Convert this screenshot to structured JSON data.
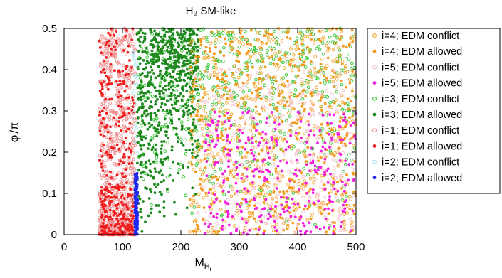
{
  "chart_data": {
    "type": "scatter",
    "title": "H₂ SM-like",
    "xlabel": "M",
    "xlabel_sub": "H",
    "xlabel_subsub": "i",
    "ylabel": "φ",
    "ylabel_sub": "i",
    "ylabel_suffix": "/π",
    "xlim": [
      0,
      500
    ],
    "ylim": [
      0,
      0.5
    ],
    "xticks": [
      "0",
      "100",
      "200",
      "300",
      "400",
      "500"
    ],
    "yticks": [
      "0",
      "0.1",
      "0.2",
      "0.3",
      "0.4",
      "0.5"
    ],
    "grid": false,
    "legend_position": "right-outside",
    "series": [
      {
        "name": "i=4; EDM conflict",
        "marker": "open-circle",
        "color": "#f5a52a",
        "regions": [
          {
            "xmin": 215,
            "xmax": 500,
            "ymin": 0,
            "ymax": 0.5,
            "count": 520
          }
        ]
      },
      {
        "name": "i=4; EDM allowed",
        "marker": "filled-circle",
        "color": "#f29a1e",
        "regions": [
          {
            "xmin": 215,
            "xmax": 500,
            "ymin": 0,
            "ymax": 0.5,
            "count": 520
          }
        ]
      },
      {
        "name": "i=5; EDM conflict",
        "marker": "open-circle",
        "color": "#f6c0c8",
        "regions": [
          {
            "xmin": 225,
            "xmax": 500,
            "ymin": 0,
            "ymax": 0.4,
            "count": 340
          }
        ]
      },
      {
        "name": "i=5; EDM allowed",
        "marker": "filled-circle",
        "color": "#f21ee0",
        "regions": [
          {
            "xmin": 240,
            "xmax": 500,
            "ymin": 0,
            "ymax": 0.3,
            "count": 330
          }
        ]
      },
      {
        "name": "i=3; EDM conflict",
        "marker": "open-circle",
        "color": "#2ec42e",
        "regions": [
          {
            "xmin": 125,
            "xmax": 500,
            "ymin": 0,
            "ymax": 0.5,
            "count": 560
          }
        ]
      },
      {
        "name": "i=3; EDM allowed",
        "marker": "filled-circle",
        "color": "#1e8a1e",
        "regions": [
          {
            "xmin": 125,
            "xmax": 230,
            "ymin": 0,
            "ymax": 0.5,
            "count": 680
          }
        ]
      },
      {
        "name": "i=1; EDM conflict",
        "marker": "open-circle",
        "color": "#f08c8c",
        "regions": [
          {
            "xmin": 60,
            "xmax": 122,
            "ymin": 0,
            "ymax": 0.5,
            "count": 820
          }
        ]
      },
      {
        "name": "i=1; EDM allowed",
        "marker": "filled-circle",
        "color": "#f01e1e",
        "regions": [
          {
            "xmin": 60,
            "xmax": 122,
            "ymin": 0,
            "ymax": 0.5,
            "count": 360
          }
        ]
      },
      {
        "name": "i=2; EDM conflict",
        "marker": "open-circle",
        "color": "#a8e6f0",
        "regions": [
          {
            "xmin": 118,
            "xmax": 128,
            "ymin": 0,
            "ymax": 0.45,
            "count": 40
          }
        ]
      },
      {
        "name": "i=2; EDM allowed",
        "marker": "filled-circle",
        "color": "#1e28f0",
        "regions": [
          {
            "xmin": 121,
            "xmax": 126,
            "ymin": 0,
            "ymax": 0.15,
            "count": 120
          }
        ]
      }
    ]
  }
}
